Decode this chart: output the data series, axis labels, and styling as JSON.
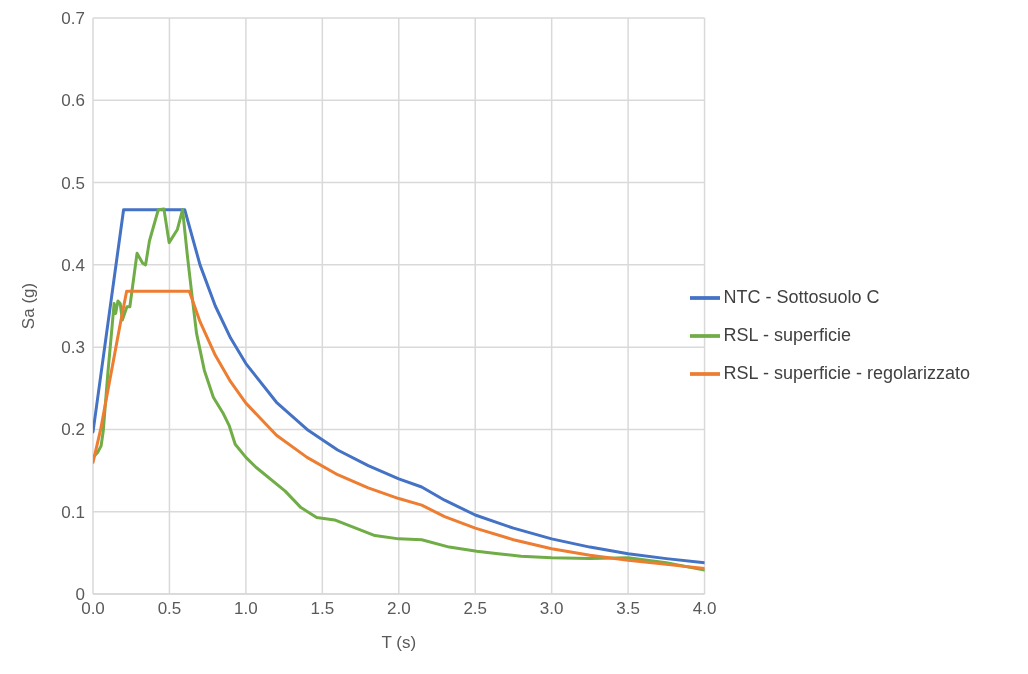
{
  "chart_data": {
    "type": "line",
    "xlabel": "T (s)",
    "ylabel": "Sa (g)",
    "xlim": [
      0,
      4
    ],
    "xticks": [
      {
        "value": 0,
        "label": "0.0"
      },
      {
        "value": 0.5,
        "label": "0.5"
      },
      {
        "value": 1,
        "label": "1.0"
      },
      {
        "value": 1.5,
        "label": "1.5"
      },
      {
        "value": 2,
        "label": "2.0"
      },
      {
        "value": 2.5,
        "label": "2.5"
      },
      {
        "value": 3,
        "label": "3.0"
      },
      {
        "value": 3.5,
        "label": "3.5"
      },
      {
        "value": 4,
        "label": "4.0"
      }
    ],
    "ylim": [
      0,
      0.7
    ],
    "yticks": [
      0,
      0.1,
      0.2,
      0.3,
      0.4,
      0.5,
      0.6,
      0.7
    ],
    "grid": true,
    "legend": "right",
    "marker": "none",
    "line_style": "solid",
    "series": [
      {
        "name": "NTC - Sottosuolo C",
        "color": "#4472c4",
        "x": [
          0,
          0.2,
          0.6,
          0.7,
          0.8,
          0.9,
          1.0,
          1.2,
          1.4,
          1.6,
          1.8,
          2.0,
          2.15,
          2.3,
          2.5,
          2.75,
          3.0,
          3.25,
          3.5,
          3.75,
          4.0
        ],
        "values": [
          0.197,
          0.467,
          0.467,
          0.4,
          0.35,
          0.311,
          0.28,
          0.233,
          0.2,
          0.175,
          0.156,
          0.14,
          0.13,
          0.114,
          0.096,
          0.08,
          0.067,
          0.057,
          0.049,
          0.043,
          0.038
        ]
      },
      {
        "name": "RSL - superficie",
        "color": "#70ad47",
        "x": [
          0,
          0.03,
          0.053,
          0.067,
          0.097,
          0.119,
          0.138,
          0.148,
          0.163,
          0.178,
          0.192,
          0.222,
          0.241,
          0.288,
          0.325,
          0.344,
          0.369,
          0.427,
          0.464,
          0.498,
          0.552,
          0.586,
          0.618,
          0.648,
          0.677,
          0.728,
          0.787,
          0.853,
          0.89,
          0.93,
          1.0,
          1.066,
          1.257,
          1.36,
          1.463,
          1.58,
          1.844,
          2.0,
          2.15,
          2.33,
          2.51,
          2.65,
          2.8,
          3.0,
          3.25,
          3.5,
          3.75,
          4.0
        ],
        "values": [
          0.166,
          0.172,
          0.18,
          0.198,
          0.268,
          0.313,
          0.353,
          0.341,
          0.356,
          0.353,
          0.333,
          0.349,
          0.349,
          0.414,
          0.402,
          0.4,
          0.429,
          0.467,
          0.468,
          0.427,
          0.443,
          0.467,
          0.41,
          0.362,
          0.317,
          0.272,
          0.239,
          0.219,
          0.205,
          0.182,
          0.166,
          0.154,
          0.125,
          0.105,
          0.093,
          0.09,
          0.071,
          0.067,
          0.066,
          0.057,
          0.052,
          0.049,
          0.046,
          0.044,
          0.043,
          0.044,
          0.038,
          0.029
        ]
      },
      {
        "name": "RSL - superficie - regolarizzato",
        "color": "#ed7d31",
        "x": [
          0,
          0.05,
          0.1,
          0.15,
          0.18,
          0.22,
          0.63,
          0.7,
          0.8,
          0.9,
          1.0,
          1.2,
          1.4,
          1.6,
          1.8,
          2.0,
          2.15,
          2.3,
          2.5,
          2.75,
          3.0,
          3.25,
          3.5,
          3.75,
          4.0
        ],
        "values": [
          0.16,
          0.2,
          0.25,
          0.3,
          0.33,
          0.368,
          0.368,
          0.331,
          0.29,
          0.258,
          0.232,
          0.193,
          0.166,
          0.145,
          0.129,
          0.116,
          0.108,
          0.094,
          0.08,
          0.066,
          0.055,
          0.047,
          0.041,
          0.036,
          0.031
        ]
      }
    ]
  }
}
